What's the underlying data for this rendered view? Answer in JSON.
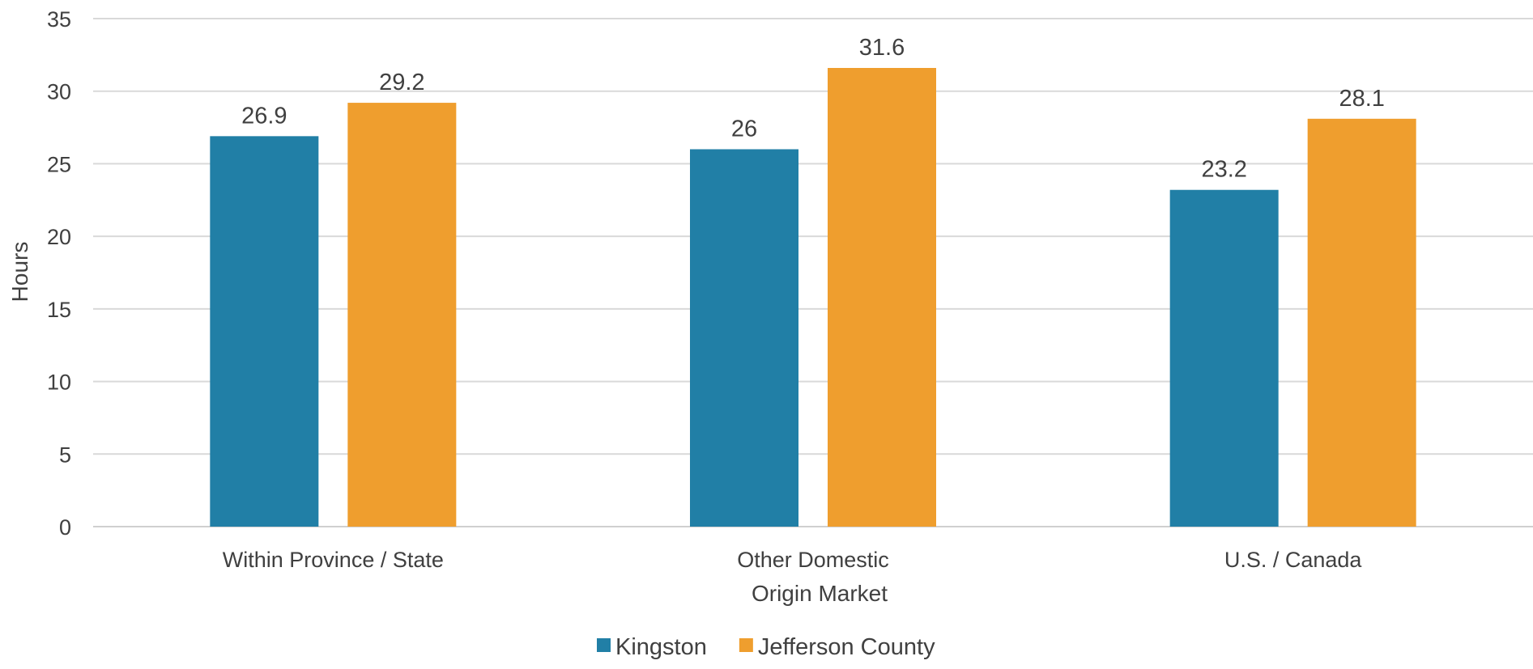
{
  "chart_data": {
    "type": "bar",
    "categories": [
      "Within Province / State",
      "Other Domestic",
      "U.S. / Canada"
    ],
    "series": [
      {
        "name": "Kingston",
        "color": "#217FA6",
        "values": [
          26.9,
          26,
          23.2
        ]
      },
      {
        "name": "Jefferson County",
        "color": "#EF9E2E",
        "values": [
          29.2,
          31.6,
          28.1
        ]
      }
    ],
    "xlabel": "Origin Market",
    "ylabel": "Hours",
    "ylim": [
      0,
      35
    ],
    "yticks": [
      0,
      5,
      10,
      15,
      20,
      25,
      30,
      35
    ],
    "grid": true,
    "legend": "bottom-center",
    "data_labels": true
  }
}
